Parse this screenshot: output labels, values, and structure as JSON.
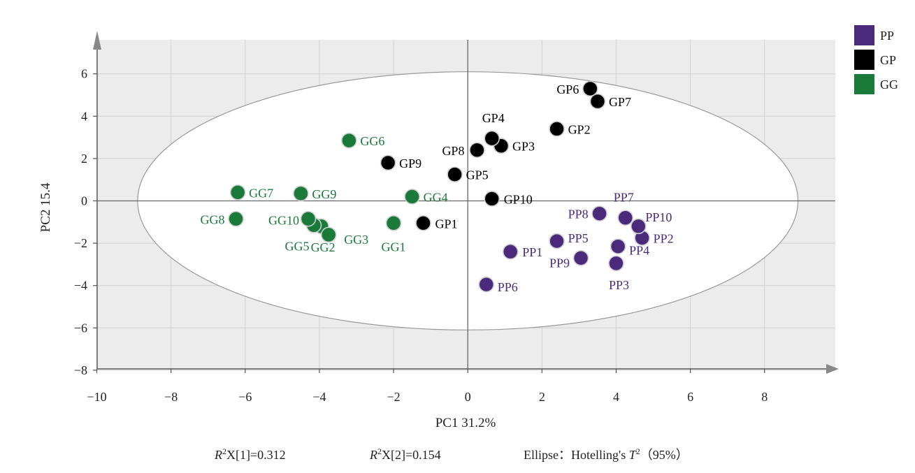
{
  "chart_data": {
    "type": "scatter",
    "xlabel": "PC1 31.2%",
    "ylabel": "PC2 15.4",
    "xlim": [
      -10,
      10
    ],
    "ylim": [
      -8,
      8
    ],
    "xticks": [
      -10,
      -8,
      -6,
      -4,
      -2,
      0,
      2,
      4,
      6,
      8
    ],
    "yticks": [
      -8,
      -6,
      -4,
      -2,
      0,
      2,
      4,
      6
    ],
    "tick_labels_x": [
      "−10",
      "−8",
      "−6",
      "−4",
      "−2",
      "0",
      "2",
      "4",
      "6",
      "8"
    ],
    "tick_labels_y": [
      "−8",
      "−6",
      "−4",
      "−2",
      "0",
      "2",
      "4",
      "6"
    ],
    "grid": true,
    "legend_position": "top-right",
    "ellipse": {
      "name": "Hotelling's T2 (95%)",
      "center": [
        0,
        0
      ],
      "semi_axis_x": 8.9,
      "semi_axis_y": 6.1
    },
    "series": [
      {
        "name": "PP",
        "color": "#4b2a7b",
        "points": [
          {
            "label": "PP1",
            "x": 1.15,
            "y": -2.4
          },
          {
            "label": "PP2",
            "x": 4.7,
            "y": -1.75
          },
          {
            "label": "PP3",
            "x": 4.0,
            "y": -2.95
          },
          {
            "label": "PP4",
            "x": 4.05,
            "y": -2.15
          },
          {
            "label": "PP5",
            "x": 2.4,
            "y": -1.9
          },
          {
            "label": "PP6",
            "x": 0.5,
            "y": -3.95
          },
          {
            "label": "PP7",
            "x": 4.25,
            "y": -0.8
          },
          {
            "label": "PP8",
            "x": 3.55,
            "y": -0.6
          },
          {
            "label": "PP9",
            "x": 3.05,
            "y": -2.7
          },
          {
            "label": "PP10",
            "x": 4.6,
            "y": -1.2
          }
        ]
      },
      {
        "name": "GP",
        "color": "#000000",
        "points": [
          {
            "label": "GP1",
            "x": -1.2,
            "y": -1.05
          },
          {
            "label": "GP2",
            "x": 2.4,
            "y": 3.4
          },
          {
            "label": "GP3",
            "x": 0.9,
            "y": 2.6
          },
          {
            "label": "GP4",
            "x": 0.65,
            "y": 2.95
          },
          {
            "label": "GP5",
            "x": -0.35,
            "y": 1.25
          },
          {
            "label": "GP6",
            "x": 3.3,
            "y": 5.3
          },
          {
            "label": "GP7",
            "x": 3.5,
            "y": 4.7
          },
          {
            "label": "GP8",
            "x": 0.25,
            "y": 2.4
          },
          {
            "label": "GP9",
            "x": -2.15,
            "y": 1.8
          },
          {
            "label": "GP10",
            "x": 0.65,
            "y": 0.1
          }
        ]
      },
      {
        "name": "GG",
        "color": "#1a7a3a",
        "points": [
          {
            "label": "GG1",
            "x": -2.0,
            "y": -1.05
          },
          {
            "label": "GG2",
            "x": -3.95,
            "y": -1.2
          },
          {
            "label": "GG3",
            "x": -3.75,
            "y": -1.6
          },
          {
            "label": "GG4",
            "x": -1.5,
            "y": 0.2
          },
          {
            "label": "GG5",
            "x": -4.15,
            "y": -1.15
          },
          {
            "label": "GG6",
            "x": -3.2,
            "y": 2.85
          },
          {
            "label": "GG7",
            "x": -6.2,
            "y": 0.4
          },
          {
            "label": "GG8",
            "x": -6.25,
            "y": -0.85
          },
          {
            "label": "GG9",
            "x": -4.5,
            "y": 0.35
          },
          {
            "label": "GG10",
            "x": -4.3,
            "y": -0.85
          }
        ]
      }
    ],
    "legend": [
      "PP",
      "GP",
      "GG"
    ],
    "annotations": [
      {
        "name": "r2x1",
        "prefix": "R",
        "sup": "2",
        "rest": "X[1]=0.312"
      },
      {
        "name": "r2x2",
        "prefix": "R",
        "sup": "2",
        "rest": "X[2]=0.154"
      },
      {
        "name": "ellipse-note",
        "text_before": "Ellipse：Hotelling's ",
        "italic": "T",
        "sup": "2",
        "text_after": "（95%）"
      }
    ]
  }
}
